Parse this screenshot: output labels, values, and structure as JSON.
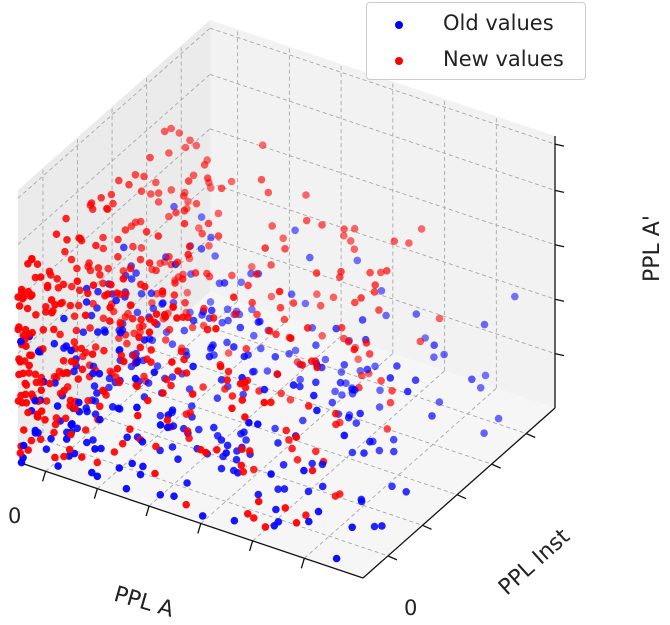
{
  "chart_data": {
    "type": "scatter3d",
    "title": "",
    "xlabel": "PPL A",
    "ylabel": "PPL Inst",
    "zlabel": "PPL A'",
    "x_tick_label": "0",
    "y_tick_label": "0",
    "grid": true,
    "legend_position": "top-right",
    "series": [
      {
        "name": "Old values",
        "color": "#0000ff",
        "seed": 11,
        "count": 330
      },
      {
        "name": "New values",
        "color": "#ff0000",
        "seed": 29,
        "count": 470
      }
    ]
  }
}
